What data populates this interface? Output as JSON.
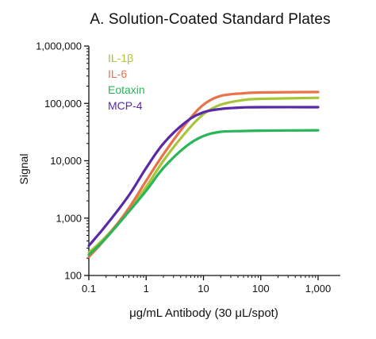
{
  "chart_data": {
    "type": "line",
    "title": "A. Solution-Coated Standard Plates",
    "xlabel": "μg/mL Antibody (30 μL/spot)",
    "ylabel": "Signal",
    "x_scale": "log",
    "y_scale": "log",
    "xlim": [
      0.1,
      1000
    ],
    "ylim": [
      100,
      1000000
    ],
    "x_ticks": [
      "0.1",
      "1",
      "10",
      "100",
      "1,000"
    ],
    "y_ticks": [
      "100",
      "1,000",
      "10,000",
      "100,000",
      "1,000,000"
    ],
    "legend_position": "top-left",
    "series": [
      {
        "name": "IL-1β",
        "color": "#a8c53a",
        "x": [
          0.1,
          0.2,
          0.5,
          1,
          2,
          5,
          10,
          20,
          50,
          100,
          1000
        ],
        "y": [
          250,
          480,
          1400,
          3500,
          10000,
          32000,
          65000,
          95000,
          115000,
          120000,
          125000
        ]
      },
      {
        "name": "IL-6",
        "color": "#e8734a",
        "x": [
          0.1,
          0.2,
          0.5,
          1,
          2,
          5,
          10,
          20,
          50,
          100,
          1000
        ],
        "y": [
          210,
          450,
          1500,
          4500,
          13000,
          45000,
          95000,
          135000,
          150000,
          155000,
          158000
        ]
      },
      {
        "name": "Eotaxin",
        "color": "#2bb55b",
        "x": [
          0.1,
          0.2,
          0.5,
          1,
          2,
          5,
          10,
          20,
          50,
          100,
          1000
        ],
        "y": [
          230,
          450,
          1300,
          3000,
          7500,
          18000,
          27000,
          32000,
          33000,
          33500,
          34000
        ]
      },
      {
        "name": "MCP-4",
        "color": "#5a2aa6",
        "x": [
          0.1,
          0.2,
          0.5,
          1,
          2,
          5,
          10,
          20,
          50,
          100,
          1000
        ],
        "y": [
          330,
          750,
          2500,
          7500,
          20000,
          48000,
          70000,
          80000,
          85000,
          86000,
          86000
        ]
      }
    ]
  }
}
